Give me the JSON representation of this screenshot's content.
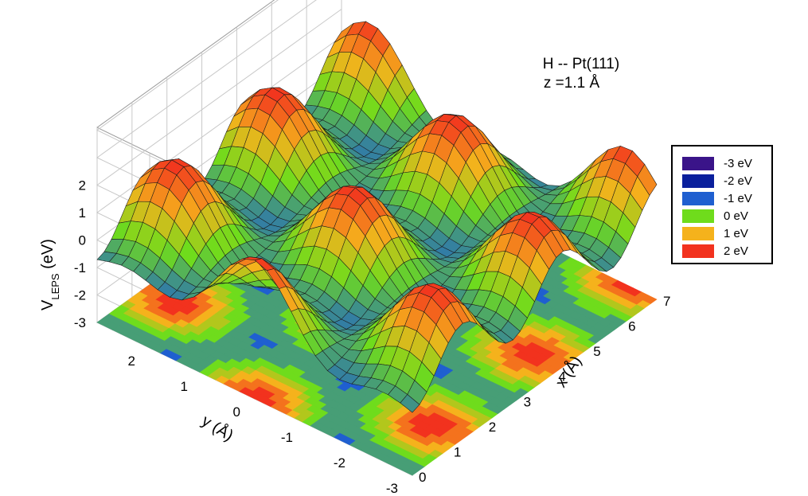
{
  "chart_data": {
    "type": "surface-3d",
    "title_lines": [
      "H -- Pt(111)",
      "z =1.1 Å"
    ],
    "zlabel_main": "V",
    "zlabel_sub": "LEPS",
    "zlabel_unit": " (eV)",
    "xlabel": "x (Å)",
    "ylabel": "y (Å)",
    "x_ticks": [
      "0",
      "1",
      "2",
      "3",
      "4",
      "5",
      "6",
      "7"
    ],
    "y_ticks": [
      "-3",
      "-2",
      "-1",
      "0",
      "1",
      "2"
    ],
    "z_ticks": [
      "-3",
      "-2",
      "-1",
      "0",
      "1",
      "2"
    ],
    "xlim": [
      0,
      7
    ],
    "ylim": [
      -3,
      3
    ],
    "zlim": [
      -3,
      2
    ],
    "legend": [
      {
        "label": "-3 eV",
        "color": "#3a1489"
      },
      {
        "label": "-2 eV",
        "color": "#0a1f9c"
      },
      {
        "label": "-1 eV",
        "color": "#1f5fd0"
      },
      {
        "label": "0 eV",
        "color": "#6fdc1c"
      },
      {
        "label": "1 eV",
        "color": "#f5b21c"
      },
      {
        "label": "2 eV",
        "color": "#f2321e"
      }
    ],
    "legend_position": "right",
    "grid": true
  }
}
